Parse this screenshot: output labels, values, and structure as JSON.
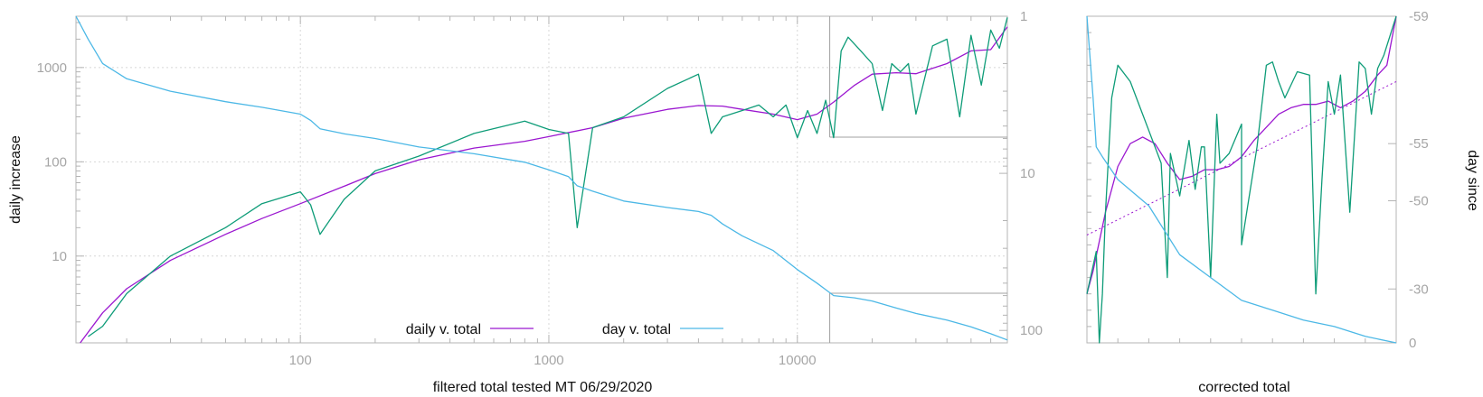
{
  "chart_data": [
    {
      "type": "line",
      "title": "",
      "xlabel": "filtered total tested MT 06/29/2020",
      "ylabel": "daily increase",
      "y2label": "",
      "xscale": "log",
      "yscale": "log",
      "y2scale": "log",
      "y2_reversed": true,
      "xlim": [
        12.5,
        70000
      ],
      "ylim": [
        1.2,
        3500
      ],
      "y2lim": [
        1,
        120
      ],
      "x_ticks": [
        100,
        1000,
        10000
      ],
      "x_tick_labels": [
        "100",
        "1000",
        "10000"
      ],
      "y_ticks": [
        10,
        100,
        1000
      ],
      "y_tick_labels": [
        "10",
        "100",
        "1000"
      ],
      "y2_ticks": [
        1,
        10,
        100
      ],
      "y2_tick_labels": [
        "1",
        "10",
        "100"
      ],
      "grid": true,
      "legend_position": "bottom-center",
      "colors": {
        "daily": "#9b17d0",
        "day": "#4cb8e6",
        "raw": "#0e9c78",
        "axis": "#b4b4b4",
        "grid": "#d7d7d7"
      },
      "series": [
        {
          "name": "daily v. total",
          "axis": "y",
          "x": [
            13,
            16,
            20,
            30,
            50,
            70,
            100,
            150,
            200,
            300,
            500,
            800,
            1000,
            1500,
            2000,
            3000,
            4000,
            5000,
            6000,
            8000,
            10000,
            12000,
            14000,
            17000,
            20000,
            25000,
            30000,
            40000,
            50000,
            60000,
            70000
          ],
          "y": [
            1.2,
            2.5,
            4.5,
            9,
            17,
            25,
            36,
            55,
            75,
            105,
            140,
            165,
            185,
            230,
            290,
            360,
            395,
            390,
            360,
            320,
            280,
            320,
            430,
            650,
            850,
            880,
            860,
            1100,
            1500,
            1550,
            2700
          ]
        },
        {
          "name": "",
          "axis": "y",
          "x": [
            14,
            16,
            20,
            30,
            50,
            70,
            100,
            110,
            120,
            150,
            200,
            300,
            500,
            800,
            1000,
            1200,
            1300,
            1500,
            2000,
            3000,
            4000,
            4500,
            5000,
            6000,
            7000,
            8000,
            9000,
            10000,
            11000,
            12000,
            13000,
            14000,
            15000,
            16000,
            18000,
            20000,
            22000,
            24000,
            26000,
            28000,
            30000,
            35000,
            40000,
            45000,
            50000,
            55000,
            60000,
            65000,
            70000
          ],
          "y": [
            1.4,
            1.8,
            4,
            10,
            20,
            36,
            48,
            35,
            17,
            40,
            80,
            115,
            200,
            270,
            220,
            200,
            20,
            230,
            300,
            600,
            850,
            200,
            300,
            350,
            400,
            300,
            400,
            180,
            350,
            200,
            450,
            180,
            1500,
            2100,
            1500,
            1100,
            350,
            1100,
            900,
            1100,
            320,
            1700,
            2000,
            300,
            2200,
            650,
            2500,
            1600,
            3400
          ]
        },
        {
          "name": "day v. total",
          "axis": "y2",
          "x": [
            12.5,
            14,
            16,
            20,
            30,
            50,
            70,
            100,
            110,
            120,
            150,
            200,
            300,
            500,
            800,
            1000,
            1200,
            1300,
            1500,
            2000,
            3000,
            4000,
            4500,
            5000,
            6000,
            8000,
            10000,
            12000,
            13000,
            14000,
            17000,
            20000,
            25000,
            30000,
            40000,
            50000,
            60000,
            70000
          ],
          "y": [
            1,
            1.4,
            2,
            2.5,
            3,
            3.5,
            3.8,
            4.2,
            4.6,
            5.2,
            5.6,
            6,
            6.8,
            7.5,
            8.5,
            9.5,
            10.5,
            12,
            13,
            15,
            16.5,
            17.5,
            18.5,
            21,
            25,
            31,
            41,
            50,
            55,
            60,
            62,
            65,
            72,
            78,
            86,
            95,
            105,
            115
          ]
        }
      ]
    },
    {
      "type": "line",
      "title": "",
      "xlabel": "corrected total",
      "ylabel": "",
      "y2label": "day since",
      "xscale": "linear",
      "y2_ticks": [
        -59,
        -55,
        -50,
        -30,
        0
      ],
      "y2_tick_labels": [
        "-59",
        "-55",
        "-50",
        "-30",
        "0"
      ],
      "y2_tick_positions": [
        0,
        0.39,
        0.565,
        0.835,
        1
      ],
      "grid": false,
      "series": [
        {
          "name": "",
          "color": "#9b17d0",
          "style": "solid",
          "x": [
            0,
            0.02,
            0.06,
            0.1,
            0.14,
            0.18,
            0.22,
            0.26,
            0.3,
            0.34,
            0.38,
            0.42,
            0.46,
            0.5,
            0.54,
            0.58,
            0.62,
            0.66,
            0.7,
            0.74,
            0.78,
            0.82,
            0.86,
            0.9,
            0.94,
            0.97,
            1.0
          ],
          "y": [
            0.85,
            0.78,
            0.6,
            0.46,
            0.39,
            0.37,
            0.39,
            0.45,
            0.5,
            0.49,
            0.47,
            0.47,
            0.46,
            0.43,
            0.38,
            0.34,
            0.3,
            0.28,
            0.27,
            0.27,
            0.26,
            0.28,
            0.26,
            0.23,
            0.18,
            0.15,
            0.0
          ]
        },
        {
          "name": "",
          "color": "#9b17d0",
          "style": "dotted",
          "x": [
            0,
            1
          ],
          "y": [
            0.67,
            0.2
          ]
        },
        {
          "name": "",
          "color": "#0e9c78",
          "style": "solid",
          "x": [
            0,
            0.03,
            0.04,
            0.05,
            0.06,
            0.08,
            0.1,
            0.14,
            0.18,
            0.24,
            0.26,
            0.27,
            0.3,
            0.33,
            0.35,
            0.37,
            0.38,
            0.4,
            0.42,
            0.43,
            0.46,
            0.5,
            0.5,
            0.55,
            0.58,
            0.6,
            0.62,
            0.64,
            0.68,
            0.72,
            0.74,
            0.76,
            0.78,
            0.8,
            0.82,
            0.85,
            0.88,
            0.9,
            0.92,
            0.94,
            0.96,
            1.0
          ],
          "y": [
            0.85,
            0.72,
            1.0,
            0.85,
            0.6,
            0.25,
            0.15,
            0.2,
            0.3,
            0.45,
            0.8,
            0.42,
            0.55,
            0.38,
            0.53,
            0.4,
            0.4,
            0.8,
            0.3,
            0.45,
            0.42,
            0.33,
            0.7,
            0.4,
            0.15,
            0.14,
            0.2,
            0.25,
            0.17,
            0.18,
            0.85,
            0.5,
            0.2,
            0.3,
            0.18,
            0.6,
            0.14,
            0.16,
            0.3,
            0.16,
            0.12,
            0.0
          ]
        },
        {
          "name": "",
          "color": "#4cb8e6",
          "style": "solid",
          "x": [
            0,
            0.02,
            0.03,
            0.05,
            0.1,
            0.2,
            0.3,
            0.4,
            0.5,
            0.6,
            0.7,
            0.8,
            0.9,
            1.0
          ],
          "y": [
            0.0,
            0.25,
            0.4,
            0.43,
            0.5,
            0.58,
            0.73,
            0.8,
            0.87,
            0.9,
            0.93,
            0.95,
            0.98,
            1.0
          ]
        }
      ]
    }
  ],
  "legend": {
    "entries": [
      {
        "label": "daily v. total",
        "color": "#9b17d0"
      },
      {
        "label": "day v. total",
        "color": "#4cb8e6"
      }
    ]
  }
}
